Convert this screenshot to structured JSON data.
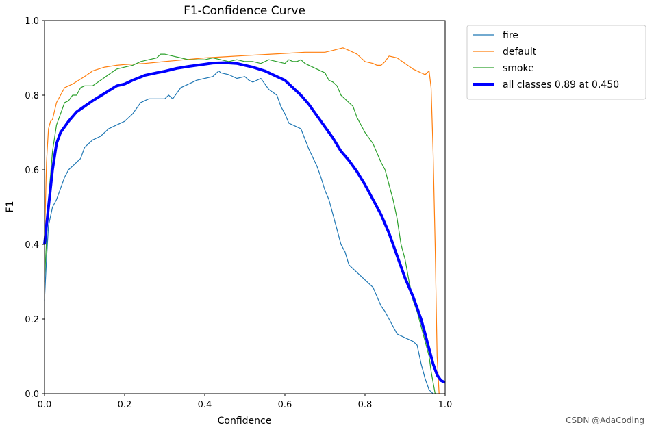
{
  "watermark": "CSDN @AdaCoding",
  "chart_data": {
    "type": "line",
    "title": "F1-Confidence Curve",
    "xlabel": "Confidence",
    "ylabel": "F1",
    "xlim": [
      0,
      1
    ],
    "ylim": [
      0,
      1
    ],
    "xticks": [
      "0.0",
      "0.2",
      "0.4",
      "0.6",
      "0.8",
      "1.0"
    ],
    "yticks": [
      "0.0",
      "0.2",
      "0.4",
      "0.6",
      "0.8",
      "1.0"
    ],
    "grid": false,
    "legend": "outside-right",
    "series": [
      {
        "name": "fire",
        "color": "#1f77b4",
        "width": 1.2,
        "points": [
          [
            0,
            0.25
          ],
          [
            0.005,
            0.36
          ],
          [
            0.01,
            0.45
          ],
          [
            0.02,
            0.5
          ],
          [
            0.03,
            0.52
          ],
          [
            0.04,
            0.55
          ],
          [
            0.05,
            0.58
          ],
          [
            0.06,
            0.6
          ],
          [
            0.07,
            0.61
          ],
          [
            0.08,
            0.62
          ],
          [
            0.09,
            0.63
          ],
          [
            0.1,
            0.66
          ],
          [
            0.12,
            0.68
          ],
          [
            0.14,
            0.69
          ],
          [
            0.16,
            0.71
          ],
          [
            0.18,
            0.72
          ],
          [
            0.2,
            0.73
          ],
          [
            0.22,
            0.75
          ],
          [
            0.24,
            0.78
          ],
          [
            0.26,
            0.79
          ],
          [
            0.28,
            0.79
          ],
          [
            0.3,
            0.79
          ],
          [
            0.31,
            0.8
          ],
          [
            0.32,
            0.79
          ],
          [
            0.34,
            0.82
          ],
          [
            0.36,
            0.83
          ],
          [
            0.38,
            0.84
          ],
          [
            0.4,
            0.845
          ],
          [
            0.42,
            0.85
          ],
          [
            0.43,
            0.86
          ],
          [
            0.435,
            0.865
          ],
          [
            0.44,
            0.86
          ],
          [
            0.46,
            0.855
          ],
          [
            0.48,
            0.845
          ],
          [
            0.5,
            0.85
          ],
          [
            0.51,
            0.84
          ],
          [
            0.52,
            0.835
          ],
          [
            0.53,
            0.84
          ],
          [
            0.54,
            0.845
          ],
          [
            0.55,
            0.83
          ],
          [
            0.56,
            0.815
          ],
          [
            0.58,
            0.8
          ],
          [
            0.59,
            0.77
          ],
          [
            0.6,
            0.75
          ],
          [
            0.61,
            0.725
          ],
          [
            0.63,
            0.715
          ],
          [
            0.64,
            0.71
          ],
          [
            0.66,
            0.655
          ],
          [
            0.68,
            0.61
          ],
          [
            0.69,
            0.58
          ],
          [
            0.7,
            0.545
          ],
          [
            0.71,
            0.52
          ],
          [
            0.72,
            0.48
          ],
          [
            0.73,
            0.44
          ],
          [
            0.74,
            0.4
          ],
          [
            0.75,
            0.38
          ],
          [
            0.76,
            0.345
          ],
          [
            0.78,
            0.325
          ],
          [
            0.8,
            0.305
          ],
          [
            0.82,
            0.285
          ],
          [
            0.83,
            0.26
          ],
          [
            0.84,
            0.235
          ],
          [
            0.85,
            0.22
          ],
          [
            0.86,
            0.2
          ],
          [
            0.87,
            0.18
          ],
          [
            0.88,
            0.16
          ],
          [
            0.9,
            0.15
          ],
          [
            0.92,
            0.14
          ],
          [
            0.93,
            0.13
          ],
          [
            0.94,
            0.08
          ],
          [
            0.95,
            0.04
          ],
          [
            0.96,
            0.01
          ],
          [
            0.97,
            0.0
          ]
        ]
      },
      {
        "name": "default",
        "color": "#ff7f0e",
        "width": 1.2,
        "points": [
          [
            0,
            0.4
          ],
          [
            0.005,
            0.62
          ],
          [
            0.01,
            0.71
          ],
          [
            0.015,
            0.73
          ],
          [
            0.02,
            0.735
          ],
          [
            0.03,
            0.78
          ],
          [
            0.04,
            0.8
          ],
          [
            0.05,
            0.82
          ],
          [
            0.07,
            0.83
          ],
          [
            0.1,
            0.85
          ],
          [
            0.12,
            0.865
          ],
          [
            0.15,
            0.875
          ],
          [
            0.18,
            0.88
          ],
          [
            0.2,
            0.882
          ],
          [
            0.25,
            0.885
          ],
          [
            0.3,
            0.89
          ],
          [
            0.35,
            0.895
          ],
          [
            0.4,
            0.9
          ],
          [
            0.45,
            0.903
          ],
          [
            0.5,
            0.906
          ],
          [
            0.55,
            0.909
          ],
          [
            0.6,
            0.912
          ],
          [
            0.65,
            0.915
          ],
          [
            0.7,
            0.915
          ],
          [
            0.72,
            0.92
          ],
          [
            0.745,
            0.927
          ],
          [
            0.76,
            0.92
          ],
          [
            0.78,
            0.91
          ],
          [
            0.8,
            0.89
          ],
          [
            0.82,
            0.885
          ],
          [
            0.83,
            0.88
          ],
          [
            0.84,
            0.88
          ],
          [
            0.85,
            0.89
          ],
          [
            0.86,
            0.905
          ],
          [
            0.88,
            0.9
          ],
          [
            0.9,
            0.885
          ],
          [
            0.92,
            0.87
          ],
          [
            0.95,
            0.855
          ],
          [
            0.96,
            0.865
          ],
          [
            0.965,
            0.82
          ],
          [
            0.97,
            0.65
          ],
          [
            0.975,
            0.4
          ],
          [
            0.98,
            0.1
          ],
          [
            0.985,
            0.0
          ]
        ]
      },
      {
        "name": "smoke",
        "color": "#2ca02c",
        "width": 1.2,
        "points": [
          [
            0,
            0.3
          ],
          [
            0.01,
            0.52
          ],
          [
            0.02,
            0.65
          ],
          [
            0.03,
            0.72
          ],
          [
            0.04,
            0.75
          ],
          [
            0.05,
            0.78
          ],
          [
            0.06,
            0.785
          ],
          [
            0.07,
            0.8
          ],
          [
            0.08,
            0.8
          ],
          [
            0.09,
            0.82
          ],
          [
            0.1,
            0.825
          ],
          [
            0.12,
            0.825
          ],
          [
            0.14,
            0.84
          ],
          [
            0.16,
            0.855
          ],
          [
            0.18,
            0.87
          ],
          [
            0.2,
            0.875
          ],
          [
            0.22,
            0.88
          ],
          [
            0.24,
            0.89
          ],
          [
            0.26,
            0.895
          ],
          [
            0.28,
            0.9
          ],
          [
            0.29,
            0.91
          ],
          [
            0.3,
            0.91
          ],
          [
            0.32,
            0.905
          ],
          [
            0.34,
            0.9
          ],
          [
            0.36,
            0.895
          ],
          [
            0.38,
            0.895
          ],
          [
            0.4,
            0.895
          ],
          [
            0.42,
            0.9
          ],
          [
            0.44,
            0.895
          ],
          [
            0.46,
            0.89
          ],
          [
            0.48,
            0.895
          ],
          [
            0.5,
            0.89
          ],
          [
            0.52,
            0.89
          ],
          [
            0.54,
            0.885
          ],
          [
            0.56,
            0.895
          ],
          [
            0.58,
            0.89
          ],
          [
            0.6,
            0.885
          ],
          [
            0.61,
            0.895
          ],
          [
            0.62,
            0.89
          ],
          [
            0.63,
            0.89
          ],
          [
            0.64,
            0.895
          ],
          [
            0.65,
            0.885
          ],
          [
            0.66,
            0.88
          ],
          [
            0.68,
            0.87
          ],
          [
            0.7,
            0.86
          ],
          [
            0.71,
            0.84
          ],
          [
            0.72,
            0.835
          ],
          [
            0.73,
            0.825
          ],
          [
            0.74,
            0.8
          ],
          [
            0.76,
            0.78
          ],
          [
            0.77,
            0.77
          ],
          [
            0.78,
            0.74
          ],
          [
            0.79,
            0.72
          ],
          [
            0.8,
            0.7
          ],
          [
            0.82,
            0.67
          ],
          [
            0.84,
            0.62
          ],
          [
            0.85,
            0.6
          ],
          [
            0.86,
            0.56
          ],
          [
            0.87,
            0.52
          ],
          [
            0.88,
            0.47
          ],
          [
            0.89,
            0.4
          ],
          [
            0.9,
            0.36
          ],
          [
            0.91,
            0.3
          ],
          [
            0.92,
            0.25
          ],
          [
            0.93,
            0.22
          ],
          [
            0.94,
            0.18
          ],
          [
            0.95,
            0.14
          ],
          [
            0.96,
            0.1
          ],
          [
            0.965,
            0.06
          ],
          [
            0.97,
            0.03
          ],
          [
            0.975,
            0.0
          ]
        ]
      },
      {
        "name": "all classes 0.89 at 0.450",
        "color": "#0000ff",
        "width": 4,
        "points": [
          [
            0,
            0.4
          ],
          [
            0.01,
            0.5
          ],
          [
            0.02,
            0.6
          ],
          [
            0.03,
            0.67
          ],
          [
            0.04,
            0.7
          ],
          [
            0.06,
            0.73
          ],
          [
            0.08,
            0.755
          ],
          [
            0.1,
            0.77
          ],
          [
            0.12,
            0.785
          ],
          [
            0.15,
            0.805
          ],
          [
            0.18,
            0.825
          ],
          [
            0.2,
            0.83
          ],
          [
            0.22,
            0.84
          ],
          [
            0.25,
            0.853
          ],
          [
            0.28,
            0.86
          ],
          [
            0.3,
            0.864
          ],
          [
            0.33,
            0.872
          ],
          [
            0.36,
            0.877
          ],
          [
            0.4,
            0.883
          ],
          [
            0.42,
            0.886
          ],
          [
            0.45,
            0.887
          ],
          [
            0.48,
            0.885
          ],
          [
            0.5,
            0.88
          ],
          [
            0.52,
            0.875
          ],
          [
            0.55,
            0.865
          ],
          [
            0.58,
            0.85
          ],
          [
            0.6,
            0.84
          ],
          [
            0.62,
            0.82
          ],
          [
            0.64,
            0.8
          ],
          [
            0.66,
            0.775
          ],
          [
            0.68,
            0.745
          ],
          [
            0.7,
            0.715
          ],
          [
            0.72,
            0.685
          ],
          [
            0.74,
            0.65
          ],
          [
            0.76,
            0.625
          ],
          [
            0.78,
            0.595
          ],
          [
            0.8,
            0.56
          ],
          [
            0.82,
            0.52
          ],
          [
            0.84,
            0.48
          ],
          [
            0.86,
            0.43
          ],
          [
            0.88,
            0.37
          ],
          [
            0.9,
            0.31
          ],
          [
            0.92,
            0.26
          ],
          [
            0.94,
            0.2
          ],
          [
            0.95,
            0.16
          ],
          [
            0.96,
            0.12
          ],
          [
            0.97,
            0.08
          ],
          [
            0.98,
            0.05
          ],
          [
            0.99,
            0.035
          ],
          [
            1.0,
            0.03
          ]
        ]
      }
    ]
  }
}
